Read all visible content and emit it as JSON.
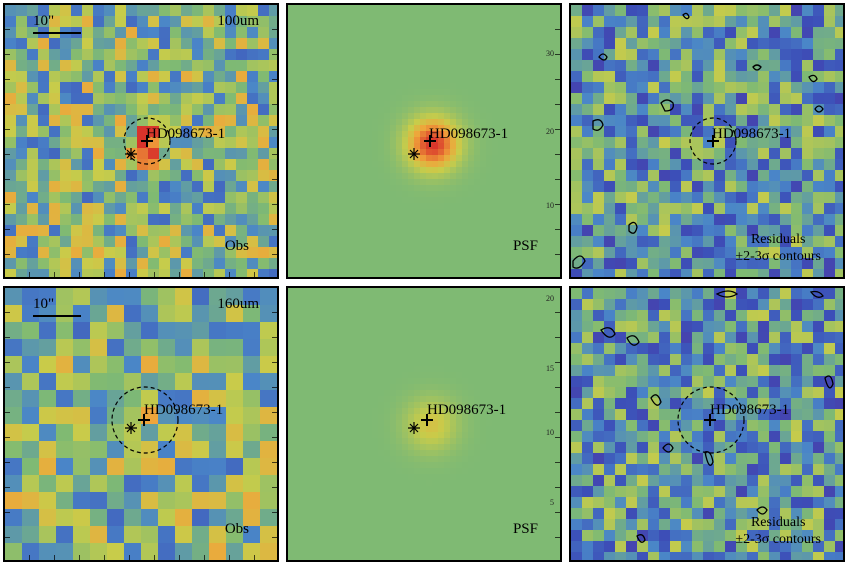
{
  "source_name": "HD098673-1",
  "scale_label": "10\"",
  "rows": [
    {
      "band": "100um",
      "obs_label": "Obs",
      "psf_label": "PSF",
      "residual_label_1": "Residuals",
      "residual_label_2": "±2-3σ contours",
      "psf_ticks": [
        "30",
        "20",
        "10"
      ]
    },
    {
      "band": "160um",
      "obs_label": "Obs",
      "psf_label": "PSF",
      "residual_label_1": "Residuals",
      "residual_label_2": "±2-3σ contours",
      "psf_ticks": [
        "20",
        "15",
        "10",
        "5"
      ]
    }
  ],
  "colors": {
    "background_green": "#7fba73",
    "map_low": "#3c4fb8",
    "map_mid": "#7fba73",
    "map_high": "#d8332b"
  }
}
